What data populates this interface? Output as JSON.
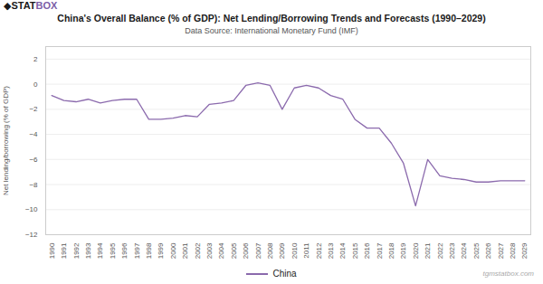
{
  "chart_data": {
    "type": "line",
    "title": "China's Overall Balance (% of GDP): Net Lending/Borrowing Trends and Forecasts (1990–2029)",
    "subtitle": "Data Source: International Monetary Fund (IMF)",
    "ylabel": "Net lending/borrowing (% of GDP)",
    "annotations": [
      {
        "text": "◆STAT",
        "color": "#1a1a1a"
      },
      {
        "text": "BOX",
        "color": "#7b5ea7"
      },
      {
        "text": "tgmstatbox.com"
      }
    ],
    "x": [
      1990,
      1991,
      1992,
      1993,
      1994,
      1995,
      1996,
      1997,
      1998,
      1999,
      2000,
      2001,
      2002,
      2003,
      2004,
      2005,
      2006,
      2007,
      2008,
      2009,
      2010,
      2011,
      2012,
      2013,
      2014,
      2015,
      2016,
      2017,
      2018,
      2019,
      2020,
      2021,
      2022,
      2023,
      2024,
      2025,
      2026,
      2027,
      2028,
      2029
    ],
    "series": [
      {
        "name": "China",
        "color": "#8b6aad",
        "values": [
          -0.9,
          -1.3,
          -1.4,
          -1.2,
          -1.5,
          -1.3,
          -1.2,
          -1.2,
          -2.8,
          -2.8,
          -2.7,
          -2.5,
          -2.6,
          -1.6,
          -1.5,
          -1.3,
          -0.1,
          0.1,
          -0.1,
          -2.0,
          -0.3,
          -0.1,
          -0.3,
          -0.9,
          -1.2,
          -2.8,
          -3.5,
          -3.5,
          -4.7,
          -6.3,
          -9.7,
          -6.0,
          -7.3,
          -7.5,
          -7.6,
          -7.8,
          -7.8,
          -7.7,
          -7.7,
          -7.7
        ]
      }
    ],
    "xlim": [
      1989.5,
      2029.5
    ],
    "xticks": [
      1990,
      1991,
      1992,
      1993,
      1994,
      1995,
      1996,
      1997,
      1998,
      1999,
      2000,
      2001,
      2002,
      2003,
      2004,
      2005,
      2006,
      2007,
      2008,
      2009,
      2010,
      2011,
      2012,
      2013,
      2014,
      2015,
      2016,
      2017,
      2018,
      2019,
      2020,
      2021,
      2022,
      2023,
      2024,
      2025,
      2026,
      2027,
      2028,
      2029
    ],
    "ylim": [
      -12,
      3
    ],
    "yticks": [
      -12,
      -10,
      -8,
      -6,
      -4,
      -2,
      0,
      2
    ],
    "grid": true,
    "legend": "bottom"
  }
}
